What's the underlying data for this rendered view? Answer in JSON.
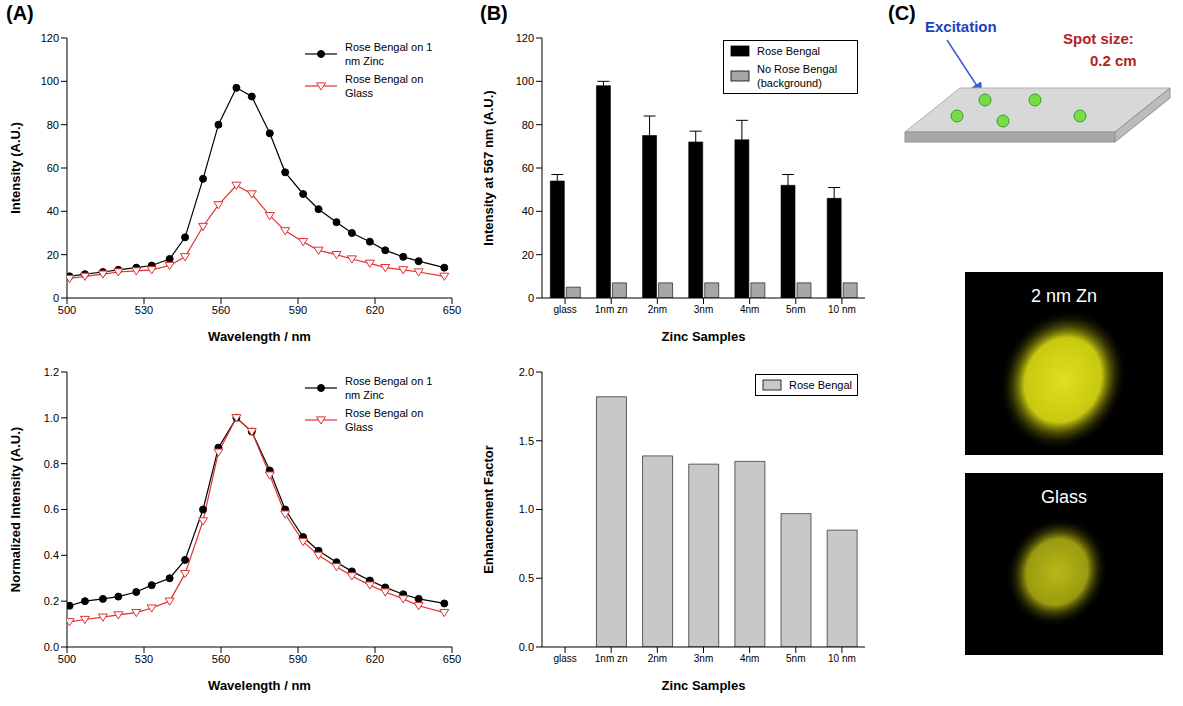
{
  "panel_labels": [
    "(A)",
    "(B)",
    "(C)"
  ],
  "chart_data": [
    {
      "type": "line",
      "xlabel": "Wavelength / nm",
      "ylabel": "Intensity (A.U.)",
      "xlim": [
        500,
        650
      ],
      "xticks": [
        500,
        530,
        560,
        590,
        620,
        650
      ],
      "ylim": [
        0,
        120
      ],
      "yticks": [
        0,
        20,
        40,
        60,
        80,
        100,
        120
      ],
      "legend": "upper right",
      "x": [
        501,
        507,
        514,
        520,
        527,
        533,
        540,
        546,
        553,
        559,
        566,
        572,
        579,
        585,
        592,
        598,
        605,
        611,
        618,
        624,
        631,
        637,
        647
      ],
      "series": [
        {
          "name": "Rose Bengal on 1 nm Zinc",
          "color": "#000000",
          "marker": "circle",
          "values": [
            10,
            11,
            12,
            13,
            14,
            15,
            18,
            28,
            55,
            80,
            97,
            93,
            76,
            58,
            48,
            41,
            35,
            30,
            26,
            22,
            19,
            17,
            14
          ]
        },
        {
          "name": "Rose Bengal on Glass",
          "color": "#e03030",
          "marker": "triangle_down",
          "values": [
            9,
            10,
            11,
            12,
            12.5,
            13,
            15,
            19,
            33,
            43,
            52,
            48,
            38,
            31,
            26,
            22,
            20,
            18,
            16,
            14,
            13,
            12,
            10
          ]
        }
      ]
    },
    {
      "type": "line",
      "xlabel": "Wavelength / nm",
      "ylabel": "Normalized Intensity (A.U.)",
      "xlim": [
        500,
        650
      ],
      "xticks": [
        500,
        530,
        560,
        590,
        620,
        650
      ],
      "ylim": [
        0,
        1.2
      ],
      "yticks": [
        {
          "value": 0,
          "label": "0.0"
        },
        0.2,
        0.4,
        0.6,
        0.8,
        {
          "value": 1,
          "label": "1.0"
        },
        1.2
      ],
      "legend": "upper right",
      "x": [
        501,
        507,
        514,
        520,
        527,
        533,
        540,
        546,
        553,
        559,
        566,
        572,
        579,
        585,
        592,
        598,
        605,
        611,
        618,
        624,
        631,
        637,
        647
      ],
      "series": [
        {
          "name": "Rose Bengal on 1 nm Zinc",
          "color": "#000000",
          "marker": "circle",
          "values": [
            0.18,
            0.2,
            0.21,
            0.22,
            0.24,
            0.27,
            0.3,
            0.38,
            0.6,
            0.87,
            1.0,
            0.94,
            0.77,
            0.6,
            0.48,
            0.42,
            0.37,
            0.33,
            0.29,
            0.26,
            0.23,
            0.21,
            0.19
          ]
        },
        {
          "name": "Rose Bengal on Glass",
          "color": "#e03030",
          "marker": "triangle_down",
          "values": [
            0.11,
            0.12,
            0.13,
            0.14,
            0.15,
            0.17,
            0.2,
            0.32,
            0.55,
            0.85,
            1.0,
            0.94,
            0.75,
            0.58,
            0.46,
            0.4,
            0.35,
            0.31,
            0.27,
            0.24,
            0.21,
            0.18,
            0.15
          ]
        }
      ]
    },
    {
      "type": "bar",
      "xlabel": "Zinc Samples",
      "ylabel": "Intensity at 567 nm (A.U.)",
      "ylim": [
        0,
        120
      ],
      "yticks": [
        0,
        20,
        40,
        60,
        80,
        100,
        120
      ],
      "legend": "upper right",
      "categories": [
        "glass",
        "1nm zn",
        "2nm",
        "3nm",
        "4nm",
        "5nm",
        "10 nm"
      ],
      "series": [
        {
          "name": "Rose Bengal",
          "color": "#000000",
          "values": [
            54,
            98,
            75,
            72,
            73,
            52,
            46
          ],
          "errors": [
            3,
            2,
            9,
            5,
            9,
            5,
            5
          ]
        },
        {
          "name": "No Rose Bengal (background)",
          "color": "#a6a6a6",
          "values": [
            5,
            7,
            7,
            7,
            7,
            7,
            7
          ]
        }
      ]
    },
    {
      "type": "bar",
      "xlabel": "Zinc Samples",
      "ylabel": "Enhancement Factor",
      "ylim": [
        0,
        2
      ],
      "yticks": [
        {
          "value": 0,
          "label": "0.0"
        },
        0.5,
        {
          "value": 1,
          "label": "1.0"
        },
        1.5,
        {
          "value": 2,
          "label": "2.0"
        }
      ],
      "legend": "upper right",
      "categories": [
        "glass",
        "1nm zn",
        "2nm",
        "3nm",
        "4nm",
        "5nm",
        "10 nm"
      ],
      "series": [
        {
          "name": "Rose Bengal",
          "color": "#c8c8c8",
          "values": [
            null,
            1.82,
            1.39,
            1.33,
            1.35,
            0.97,
            0.85
          ]
        }
      ]
    }
  ],
  "diagram": {
    "excitation": "Excitation",
    "spot_size_label": "Spot size:",
    "spot_size": "0.2 cm",
    "images": [
      "2 nm Zn",
      "Glass"
    ]
  }
}
